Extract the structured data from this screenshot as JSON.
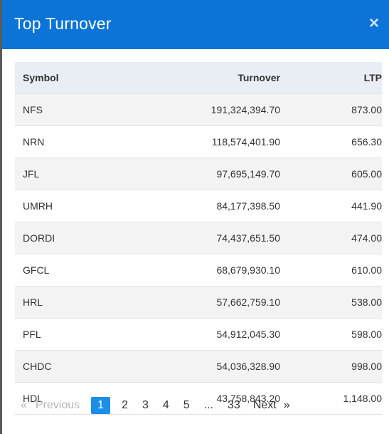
{
  "modal": {
    "title": "Top Turnover",
    "close_label": "×"
  },
  "table": {
    "headers": {
      "symbol": "Symbol",
      "turnover": "Turnover",
      "ltp": "LTP"
    },
    "rows": [
      {
        "symbol": "NFS",
        "turnover": "191,324,394.70",
        "ltp": "873.00"
      },
      {
        "symbol": "NRN",
        "turnover": "118,574,401.90",
        "ltp": "656.30"
      },
      {
        "symbol": "JFL",
        "turnover": "97,695,149.70",
        "ltp": "605.00"
      },
      {
        "symbol": "UMRH",
        "turnover": "84,177,398.50",
        "ltp": "441.90"
      },
      {
        "symbol": "DORDI",
        "turnover": "74,437,651.50",
        "ltp": "474.00"
      },
      {
        "symbol": "GFCL",
        "turnover": "68,679,930.10",
        "ltp": "610.00"
      },
      {
        "symbol": "HRL",
        "turnover": "57,662,759.10",
        "ltp": "538.00"
      },
      {
        "symbol": "PFL",
        "turnover": "54,912,045.30",
        "ltp": "598.00"
      },
      {
        "symbol": "CHDC",
        "turnover": "54,036,328.90",
        "ltp": "998.00"
      },
      {
        "symbol": "HDL",
        "turnover": "43,758,843.20",
        "ltp": "1,148.00"
      }
    ]
  },
  "pagination": {
    "prev_arrow": "«",
    "prev_label": "Previous",
    "pages": [
      "1",
      "2",
      "3",
      "4",
      "5"
    ],
    "active_page": "1",
    "ellipsis": "...",
    "last_page": "33",
    "next_label": "Next",
    "next_arrow": "»"
  },
  "colors": {
    "header_bg": "#0b74d6",
    "active_page_bg": "#1b8ee6",
    "table_head_bg": "#e9eef4"
  }
}
